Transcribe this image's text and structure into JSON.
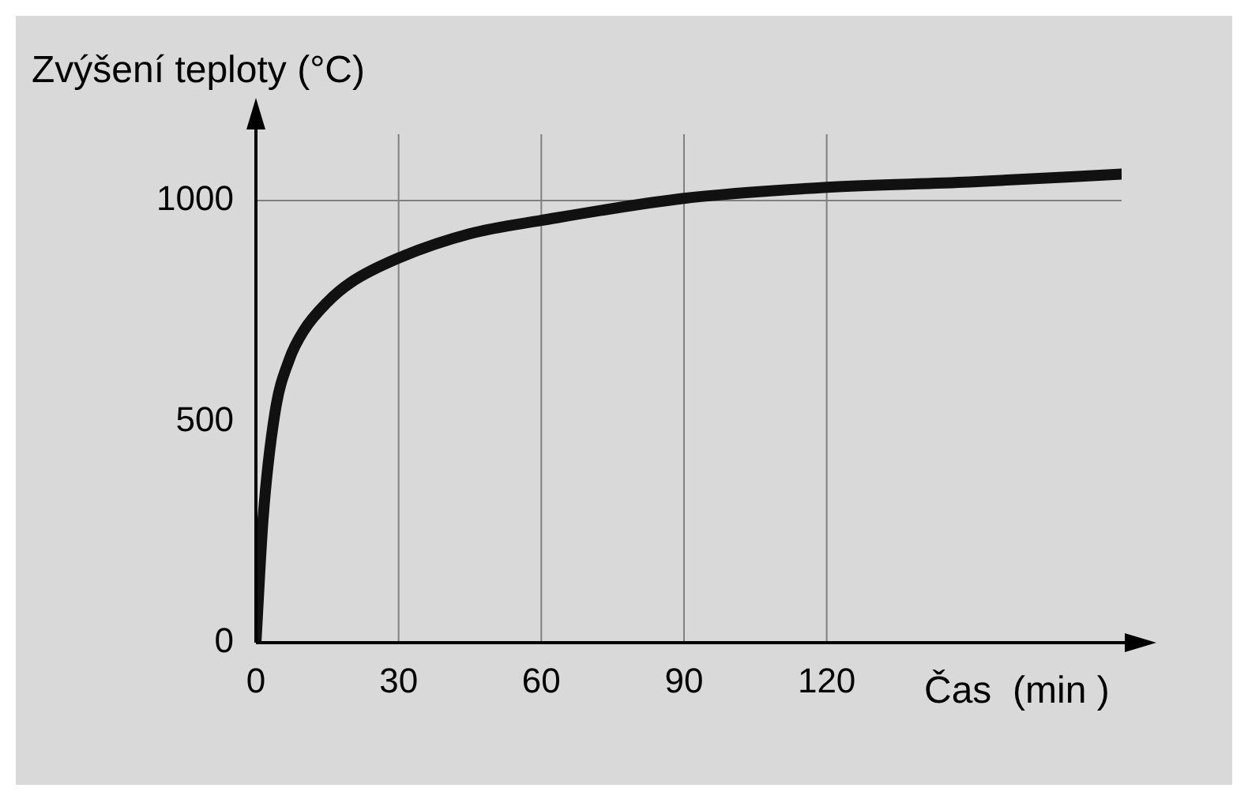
{
  "chart_data": {
    "type": "line",
    "xlabel": "Čas  (min )",
    "ylabel": "Zvýšení teploty (°C)",
    "x": [
      0,
      1.5,
      4,
      7,
      10,
      15,
      20,
      30,
      45,
      60,
      90,
      120,
      150,
      182
    ],
    "series": [
      {
        "color": "#111111",
        "values": [
          0,
          280,
          520,
          640,
          705,
          770,
          815,
          870,
          925,
          955,
          1005,
          1030,
          1042,
          1060
        ]
      }
    ],
    "xlim": [
      0,
      182
    ],
    "xticks": [
      0,
      30,
      60,
      90,
      120
    ],
    "ylim": [
      0,
      1150
    ],
    "yticks": [
      0,
      500,
      1000
    ],
    "ref_lines": [
      {
        "axis": "x",
        "value": 30,
        "label": null,
        "color": "#808080"
      },
      {
        "axis": "x",
        "value": 60,
        "label": null,
        "color": "#808080"
      },
      {
        "axis": "x",
        "value": 90,
        "label": null,
        "color": "#808080"
      },
      {
        "axis": "x",
        "value": 120,
        "label": null,
        "color": "#808080"
      },
      {
        "axis": "y",
        "value": 1000,
        "label": null,
        "color": "#808080"
      }
    ],
    "grid": false,
    "legend": false,
    "marker": "none",
    "line_style": "solid"
  }
}
